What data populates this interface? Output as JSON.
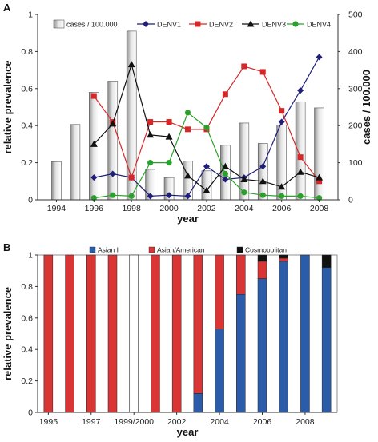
{
  "chart_data": [
    {
      "panel_label": "A",
      "type": "bar+line",
      "xlabel": "year",
      "ylabel": "relative prevalence",
      "y2label": "cases / 100.000",
      "ylim": [
        0,
        1
      ],
      "y2lim": [
        0,
        500
      ],
      "xlim": [
        1993,
        2009
      ],
      "xticks": [
        1994,
        1996,
        1998,
        2000,
        2002,
        2004,
        2006,
        2008
      ],
      "yticks": [
        0,
        0.2,
        0.4,
        0.6,
        0.8,
        1
      ],
      "y2ticks": [
        0,
        100,
        200,
        300,
        400,
        500
      ],
      "grid": false,
      "legend_position": "top",
      "bar_series": {
        "name": "cases / 100.000",
        "x": [
          1994,
          1995,
          1996,
          1997,
          1998,
          1999,
          2000,
          2001,
          2002,
          2003,
          2004,
          2005,
          2006,
          2007,
          2008
        ],
        "values": [
          103,
          203,
          290,
          320,
          455,
          82,
          60,
          104,
          78,
          147,
          207,
          152,
          202,
          264,
          248
        ]
      },
      "line_series": [
        {
          "name": "DENV1",
          "color": "#1f1f7a",
          "marker": "diamond",
          "x": [
            1996,
            1997,
            1998,
            1999,
            2000,
            2001,
            2002,
            2003,
            2004,
            2005,
            2006,
            2007,
            2008
          ],
          "values": [
            0.12,
            0.14,
            0.12,
            0.02,
            0.025,
            0.02,
            0.18,
            0.11,
            0.12,
            0.18,
            0.42,
            0.59,
            0.77
          ]
        },
        {
          "name": "DENV2",
          "color": "#d62728",
          "marker": "square",
          "x": [
            1996,
            1997,
            1998,
            1999,
            2000,
            2001,
            2002,
            2003,
            2004,
            2005,
            2006,
            2007,
            2008
          ],
          "values": [
            0.56,
            0.42,
            0.12,
            0.42,
            0.42,
            0.38,
            0.38,
            0.57,
            0.72,
            0.69,
            0.48,
            0.23,
            0.1
          ]
        },
        {
          "name": "DENV3",
          "color": "#111111",
          "marker": "triangle",
          "x": [
            1996,
            1997,
            1998,
            1999,
            2000,
            2001,
            2002,
            2003,
            2004,
            2005,
            2006,
            2007,
            2008
          ],
          "values": [
            0.3,
            0.41,
            0.73,
            0.35,
            0.34,
            0.13,
            0.05,
            0.18,
            0.11,
            0.1,
            0.07,
            0.15,
            0.12
          ]
        },
        {
          "name": "DENV4",
          "color": "#2ca02c",
          "marker": "circle",
          "x": [
            1996,
            1997,
            1998,
            1999,
            2000,
            2001,
            2002,
            2003,
            2004,
            2005,
            2006,
            2007,
            2008
          ],
          "values": [
            0.01,
            0.025,
            0.02,
            0.2,
            0.2,
            0.47,
            0.39,
            0.14,
            0.04,
            0.025,
            0.02,
            0.02,
            0.01
          ]
        }
      ]
    },
    {
      "panel_label": "B",
      "type": "bar",
      "stacked": true,
      "xlabel": "year",
      "ylabel": "relative prevalence",
      "ylim": [
        0,
        1
      ],
      "yticks": [
        0,
        0.2,
        0.4,
        0.6,
        0.8,
        1
      ],
      "grid": false,
      "legend_position": "top",
      "xtick_labels": [
        "1995",
        "1997",
        "1999/2000",
        "2002",
        "2004",
        "2006",
        "2008"
      ],
      "categories": [
        "1995",
        "1996",
        "1997",
        "1998",
        "1999/2000",
        "2001",
        "2002",
        "2003",
        "2004",
        "2005",
        "2006",
        "2007",
        "2008",
        "2009"
      ],
      "series": [
        {
          "name": "Asian I",
          "color": "#2a5caa",
          "values": [
            0,
            0,
            0,
            0,
            0,
            0,
            0,
            0.12,
            0.53,
            0.75,
            0.85,
            0.96,
            1.0,
            0.92
          ]
        },
        {
          "name": "Asian/American",
          "color": "#d93535",
          "values": [
            1,
            1,
            1,
            1,
            0,
            1,
            1,
            0.88,
            0.47,
            0.25,
            0.11,
            0.02,
            0,
            0
          ]
        },
        {
          "name": "Cosmopolitan",
          "color": "#111111",
          "values": [
            0,
            0,
            0,
            0,
            0,
            0,
            0,
            0,
            0,
            0,
            0.04,
            0.02,
            0,
            0.08
          ]
        }
      ]
    }
  ]
}
